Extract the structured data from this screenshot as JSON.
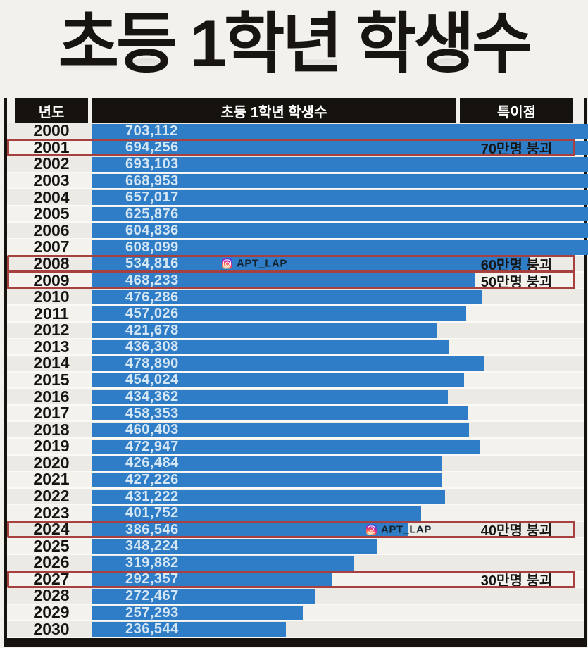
{
  "title": "초등 1학년 학생수",
  "table": {
    "headers": {
      "year": "년도",
      "count": "초등 1학년 학생수",
      "note": "특이점"
    }
  },
  "watermark": {
    "label": "APT_LAP"
  },
  "colors": {
    "background": "#f2f1ec",
    "header_bg": "#16130f",
    "header_text": "#ffffff",
    "bar": "#2f7dc6",
    "bar_value_text": "#d5e6f4",
    "highlight_border": "#a84040",
    "year_text": "#151413"
  },
  "chart_data": {
    "type": "bar",
    "orientation": "horizontal",
    "title": "초등 1학년 학생수",
    "xlabel": "초등 1학년 학생수",
    "ylabel": "년도",
    "xlim": [
      0,
      703112
    ],
    "grid": false,
    "legend": false,
    "categories": [
      "2000",
      "2001",
      "2002",
      "2003",
      "2004",
      "2005",
      "2006",
      "2007",
      "2008",
      "2009",
      "2010",
      "2011",
      "2012",
      "2013",
      "2014",
      "2015",
      "2016",
      "2017",
      "2018",
      "2019",
      "2020",
      "2021",
      "2022",
      "2023",
      "2024",
      "2025",
      "2026",
      "2027",
      "2028",
      "2029",
      "2030"
    ],
    "values": [
      703112,
      694256,
      693103,
      668953,
      657017,
      625876,
      604836,
      608099,
      534816,
      468233,
      476286,
      457026,
      421678,
      436308,
      478890,
      454024,
      434362,
      458353,
      460403,
      472947,
      426484,
      427226,
      431222,
      401752,
      386546,
      348224,
      319882,
      292357,
      272467,
      257293,
      236544
    ],
    "value_labels": [
      "703,112",
      "694,256",
      "693,103",
      "668,953",
      "657,017",
      "625,876",
      "604,836",
      "608,099",
      "534,816",
      "468,233",
      "476,286",
      "457,026",
      "421,678",
      "436,308",
      "478,890",
      "454,024",
      "434,362",
      "458,353",
      "460,403",
      "472,947",
      "426,484",
      "427,226",
      "431,222",
      "401,752",
      "386,546",
      "348,224",
      "319,882",
      "292,357",
      "272,467",
      "257,293",
      "236,544"
    ],
    "annotations": [
      {
        "year": "2001",
        "label": "70만명 붕괴"
      },
      {
        "year": "2008",
        "label": "60만명 붕괴"
      },
      {
        "year": "2009",
        "label": "50만명 붕괴"
      },
      {
        "year": "2024",
        "label": "40만명 붕괴"
      },
      {
        "year": "2027",
        "label": "30만명 붕괴"
      }
    ],
    "watermarked_rows": [
      "2008",
      "2024"
    ]
  }
}
